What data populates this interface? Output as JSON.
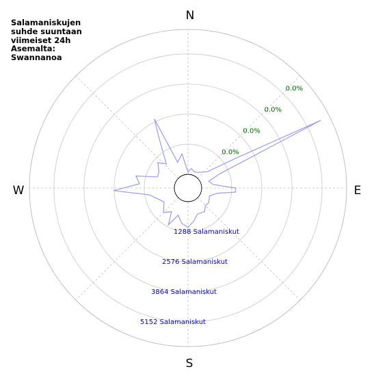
{
  "chart_data": {
    "type": "polar-line",
    "title": "Salamaniskujen\nsuhde suuntaan\nviimeiset 24h\nAsemalta:\nSwannanoa",
    "directions": [
      "N",
      "E",
      "S",
      "W"
    ],
    "radial_labels": [
      "1288 Salamaniskut",
      "2576 Salamaniskut",
      "3864 Salamaniskut",
      "5152 Salamaniskut"
    ],
    "percent_labels": [
      "0.0%",
      "0.0%",
      "0.0%",
      "0.0%"
    ],
    "r_ticks": [
      1288,
      2576,
      3864,
      5152
    ],
    "r_max": 6200,
    "series": [
      {
        "color": "#9999ee",
        "points": [
          {
            "bearing": 0,
            "value": 100
          },
          {
            "bearing": 10,
            "value": 260
          },
          {
            "bearing": 20,
            "value": 160
          },
          {
            "bearing": 30,
            "value": 190
          },
          {
            "bearing": 40,
            "value": 300
          },
          {
            "bearing": 50,
            "value": 500
          },
          {
            "bearing": 58,
            "value": 1800
          },
          {
            "bearing": 63,
            "value": 5800
          },
          {
            "bearing": 66,
            "value": 900
          },
          {
            "bearing": 72,
            "value": 350
          },
          {
            "bearing": 82,
            "value": 500
          },
          {
            "bearing": 90,
            "value": 1450
          },
          {
            "bearing": 95,
            "value": 1450
          },
          {
            "bearing": 100,
            "value": 700
          },
          {
            "bearing": 110,
            "value": 400
          },
          {
            "bearing": 125,
            "value": 500
          },
          {
            "bearing": 135,
            "value": 480
          },
          {
            "bearing": 145,
            "value": 650
          },
          {
            "bearing": 160,
            "value": 600
          },
          {
            "bearing": 170,
            "value": 850
          },
          {
            "bearing": 180,
            "value": 1100
          },
          {
            "bearing": 190,
            "value": 950
          },
          {
            "bearing": 200,
            "value": 650
          },
          {
            "bearing": 208,
            "value": 1200
          },
          {
            "bearing": 215,
            "value": 650
          },
          {
            "bearing": 225,
            "value": 900
          },
          {
            "bearing": 240,
            "value": 600
          },
          {
            "bearing": 260,
            "value": 1100
          },
          {
            "bearing": 268,
            "value": 2600
          },
          {
            "bearing": 275,
            "value": 1500
          },
          {
            "bearing": 283,
            "value": 1700
          },
          {
            "bearing": 290,
            "value": 800
          },
          {
            "bearing": 300,
            "value": 850
          },
          {
            "bearing": 310,
            "value": 1100
          },
          {
            "bearing": 318,
            "value": 800
          },
          {
            "bearing": 330,
            "value": 1900
          },
          {
            "bearing": 334,
            "value": 2700
          },
          {
            "bearing": 338,
            "value": 600
          },
          {
            "bearing": 350,
            "value": 900
          },
          {
            "bearing": 360,
            "value": 100
          }
        ]
      }
    ]
  }
}
